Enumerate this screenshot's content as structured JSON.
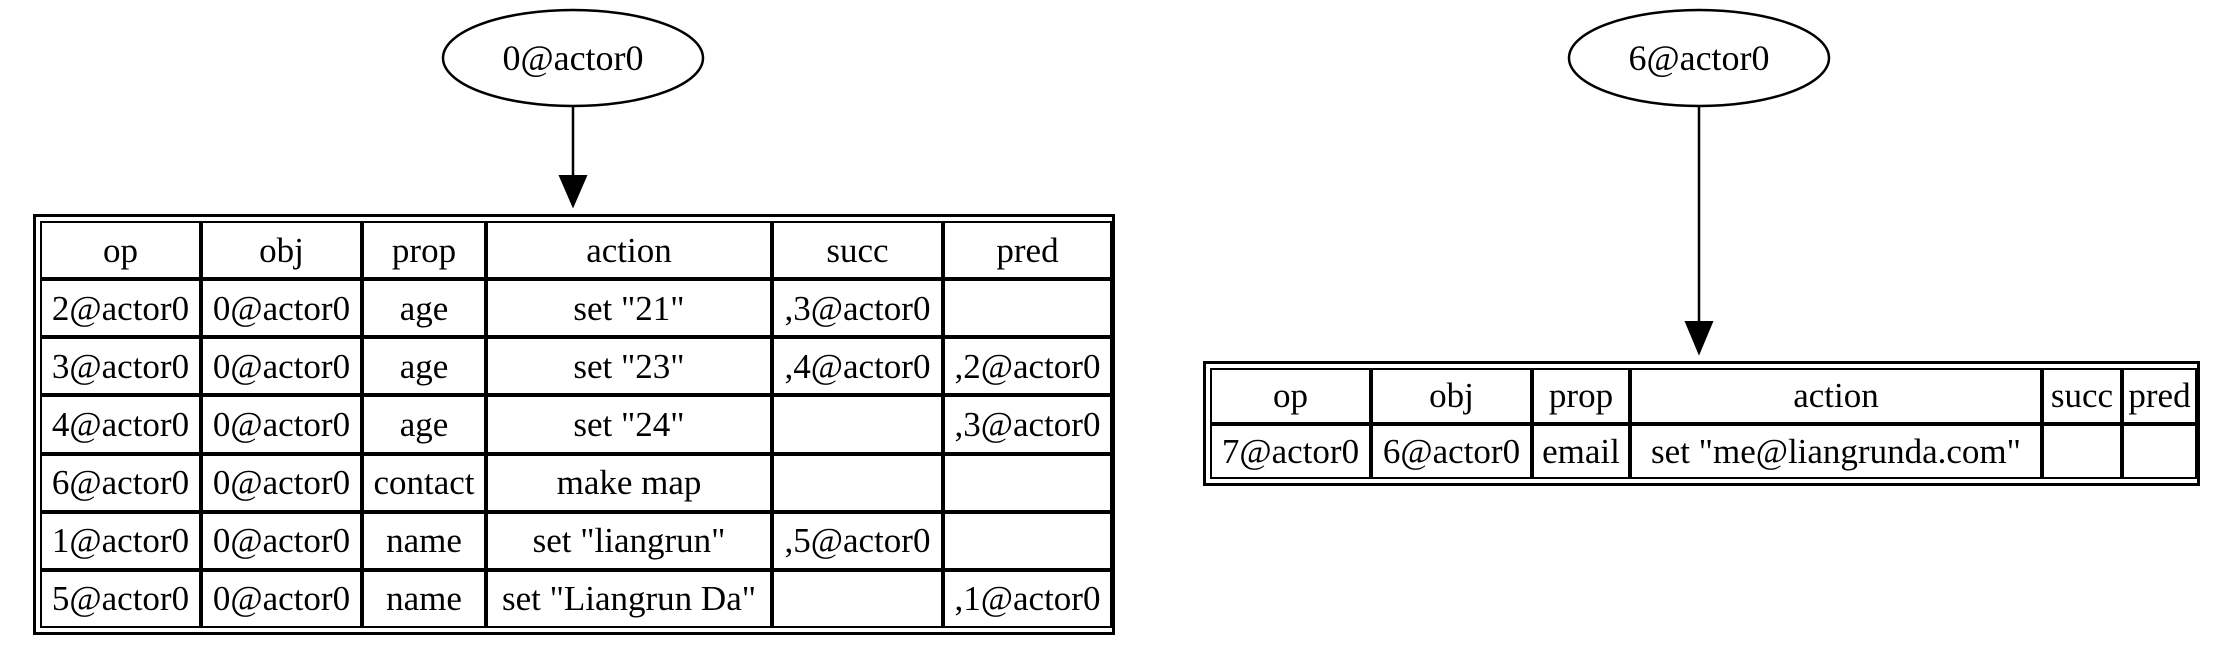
{
  "graph": {
    "nodes": [
      {
        "id": "node-0",
        "label": "0@actor0"
      },
      {
        "id": "node-6",
        "label": "6@actor0"
      }
    ],
    "tables": [
      {
        "id": "table-0",
        "headers": [
          "op",
          "obj",
          "prop",
          "action",
          "succ",
          "pred"
        ],
        "rows": [
          [
            "2@actor0",
            "0@actor0",
            "age",
            "set \"21\"",
            ",3@actor0",
            ""
          ],
          [
            "3@actor0",
            "0@actor0",
            "age",
            "set \"23\"",
            ",4@actor0",
            ",2@actor0"
          ],
          [
            "4@actor0",
            "0@actor0",
            "age",
            "set \"24\"",
            "",
            ",3@actor0"
          ],
          [
            "6@actor0",
            "0@actor0",
            "contact",
            "make map",
            "",
            ""
          ],
          [
            "1@actor0",
            "0@actor0",
            "name",
            "set \"liangrun\"",
            ",5@actor0",
            ""
          ],
          [
            "5@actor0",
            "0@actor0",
            "name",
            "set \"Liangrun Da\"",
            "",
            ",1@actor0"
          ]
        ]
      },
      {
        "id": "table-6",
        "headers": [
          "op",
          "obj",
          "prop",
          "action",
          "succ",
          "pred"
        ],
        "rows": [
          [
            "7@actor0",
            "6@actor0",
            "email",
            "set \"me@liangrunda.com\"",
            "",
            ""
          ]
        ]
      }
    ]
  }
}
